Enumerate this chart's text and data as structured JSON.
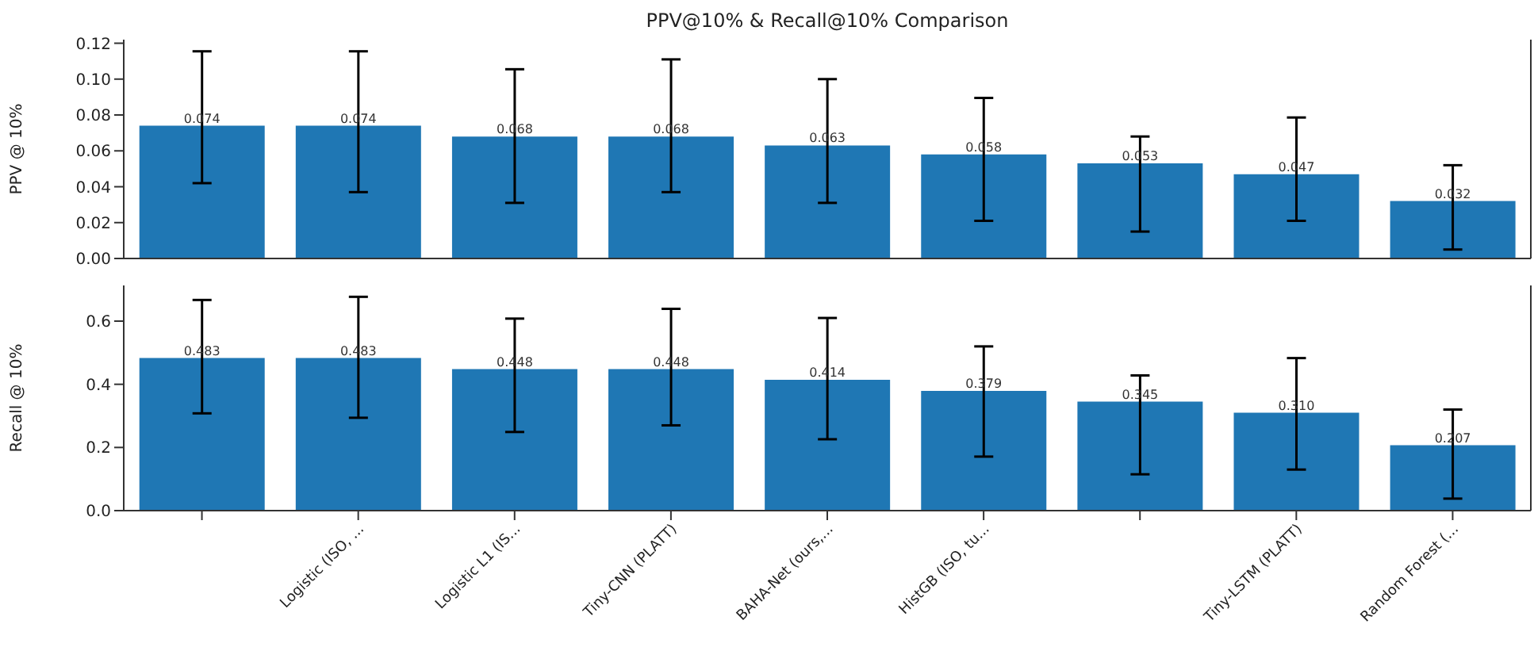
{
  "chart_data": [
    {
      "type": "bar",
      "title": "PPV@10% & Recall@10% Comparison",
      "ylabel": "PPV @ 10%",
      "categories": [
        null,
        null,
        null,
        null,
        null,
        null,
        null,
        null,
        null
      ],
      "series": [
        {
          "color": "#1f77b4",
          "values": [
            0.074,
            0.074,
            0.068,
            0.068,
            0.063,
            0.058,
            0.053,
            0.047,
            0.032
          ],
          "errors": [
            [
              0.042,
              0.1155
            ],
            [
              0.037,
              0.1155
            ],
            [
              0.031,
              0.1055
            ],
            [
              0.037,
              0.111
            ],
            [
              0.031,
              0.1
            ],
            [
              0.021,
              0.0895
            ],
            [
              0.015,
              0.068
            ],
            [
              0.021,
              0.0786
            ],
            [
              0.005,
              0.052
            ]
          ],
          "value_labels": [
            "0.074",
            "0.074",
            "0.068",
            "0.068",
            "0.063",
            "0.058",
            "0.053",
            "0.047",
            "0.032"
          ]
        }
      ],
      "ylim": [
        0,
        0.122
      ],
      "yticks": [
        {
          "value": 0,
          "label": "0.00"
        },
        {
          "value": 0.02,
          "label": "0.02"
        },
        {
          "value": 0.04,
          "label": "0.04"
        },
        {
          "value": 0.06,
          "label": "0.06"
        },
        {
          "value": 0.08,
          "label": "0.08"
        },
        {
          "value": 0.1,
          "label": "0.10"
        },
        {
          "value": 0.12,
          "label": "0.12"
        }
      ],
      "tick_labels": "y",
      "grid": false,
      "legend": false
    },
    {
      "type": "bar",
      "ylabel": "Recall @ 10%",
      "categories": [
        null,
        "Logistic (ISO, ...",
        "Logistic L1 (IS...",
        "Tiny-CNN (PLATT)",
        "BAHA-Net (ours,...",
        "HistGB (ISO, tu...",
        null,
        "Tiny-LSTM (PLATT)",
        "Random Forest (..."
      ],
      "series": [
        {
          "color": "#1f77b4",
          "values": [
            0.483,
            0.483,
            0.448,
            0.448,
            0.414,
            0.379,
            0.345,
            0.31,
            0.207
          ],
          "errors": [
            [
              0.308,
              0.667
            ],
            [
              0.294,
              0.677
            ],
            [
              0.249,
              0.608
            ],
            [
              0.27,
              0.639
            ],
            [
              0.226,
              0.61
            ],
            [
              0.171,
              0.52
            ],
            [
              0.115,
              0.428
            ],
            [
              0.13,
              0.483
            ],
            [
              0.038,
              0.32
            ]
          ],
          "value_labels": [
            "0.483",
            "0.483",
            "0.448",
            "0.448",
            "0.414",
            "0.379",
            "0.345",
            "0.310",
            "0.207"
          ]
        }
      ],
      "ylim": [
        0,
        0.713
      ],
      "yticks": [
        {
          "value": 0,
          "label": "0.0"
        },
        {
          "value": 0.2,
          "label": "0.2"
        },
        {
          "value": 0.4,
          "label": "0.4"
        },
        {
          "value": 0.6,
          "label": "0.6"
        }
      ],
      "grid": false,
      "legend": false
    }
  ]
}
